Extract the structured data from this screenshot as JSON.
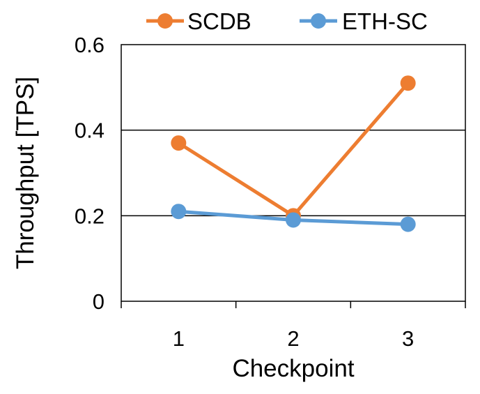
{
  "chart_data": {
    "type": "line",
    "x": [
      "1",
      "2",
      "3"
    ],
    "series": [
      {
        "name": "SCDB",
        "color": "#ED7D31",
        "values": [
          0.37,
          0.2,
          0.51
        ]
      },
      {
        "name": "ETH-SC",
        "color": "#5B9BD5",
        "values": [
          0.21,
          0.19,
          0.18
        ]
      }
    ],
    "xlabel": "Checkpoint",
    "ylabel": "Throughput [TPS]",
    "ylim": [
      0,
      0.6
    ],
    "yticks": [
      "0",
      "0.2",
      "0.4",
      "0.6"
    ],
    "grid": "horizontal",
    "legend_position": "top"
  }
}
